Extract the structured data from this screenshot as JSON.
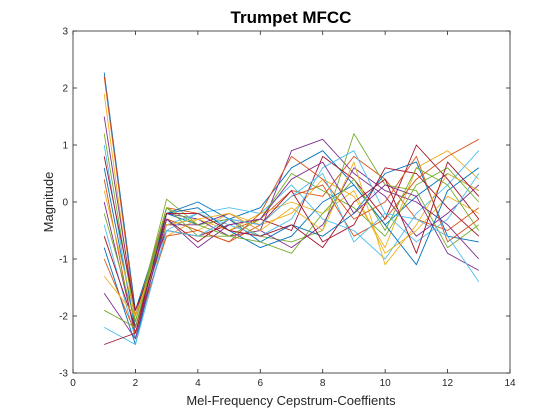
{
  "chart_data": {
    "type": "line",
    "title": "Trumpet MFCC",
    "xlabel": "Mel-Frequency Cepstrum-Coeffients",
    "ylabel": "Magnitude",
    "xlim": [
      0,
      14
    ],
    "ylim": [
      -3,
      3
    ],
    "xticks": [
      0,
      2,
      4,
      6,
      8,
      10,
      12,
      14
    ],
    "yticks": [
      -3,
      -2,
      -1,
      0,
      1,
      2,
      3
    ],
    "grid": false,
    "legend": "none",
    "colors": [
      "#0072BD",
      "#D95319",
      "#EDB120",
      "#7E2F8E",
      "#77AC30",
      "#4DBEEE",
      "#A2142F"
    ],
    "x": [
      1,
      2,
      3,
      4,
      5,
      6,
      7,
      8,
      9,
      10,
      11,
      12,
      13
    ],
    "series": [
      {
        "values": [
          2.27,
          -1.9,
          -0.2,
          -0.4,
          -0.3,
          -0.1,
          0.6,
          0.9,
          0.3,
          -0.4,
          0.1,
          0.5,
          0.2
        ]
      },
      {
        "values": [
          2.2,
          -2.0,
          -0.1,
          -0.2,
          -0.5,
          -0.3,
          0.2,
          0.1,
          0.8,
          0.4,
          -0.3,
          -0.5,
          -0.1
        ]
      },
      {
        "values": [
          1.9,
          -2.2,
          -0.3,
          -0.5,
          -0.2,
          -0.4,
          -0.2,
          0.4,
          0.1,
          -0.8,
          0.6,
          0.9,
          0.4
        ]
      },
      {
        "values": [
          1.5,
          -2.0,
          -0.2,
          -0.3,
          -0.6,
          -0.5,
          0.9,
          1.1,
          0.5,
          0.1,
          -0.6,
          -0.2,
          0.3
        ]
      },
      {
        "values": [
          1.2,
          -2.1,
          0.05,
          -0.4,
          -0.3,
          -0.6,
          -0.7,
          -0.5,
          1.2,
          0.3,
          0.2,
          -0.8,
          -0.4
        ]
      },
      {
        "values": [
          1.0,
          -2.3,
          -0.4,
          -0.2,
          -0.1,
          -0.2,
          0.3,
          -0.3,
          -0.5,
          -1.0,
          -0.2,
          0.3,
          0.9
        ]
      },
      {
        "values": [
          0.8,
          -1.9,
          -0.5,
          -0.6,
          -0.4,
          -0.3,
          -0.5,
          0.8,
          0.4,
          -0.3,
          1.0,
          0.4,
          -0.3
        ]
      },
      {
        "values": [
          0.6,
          -2.2,
          -0.2,
          0.0,
          -0.3,
          -0.7,
          -0.4,
          -0.6,
          -0.2,
          0.5,
          0.7,
          -0.6,
          -0.7
        ]
      },
      {
        "values": [
          0.4,
          -2.4,
          -0.3,
          -0.5,
          -0.7,
          -0.4,
          0.1,
          0.3,
          -0.6,
          -0.3,
          0.4,
          0.8,
          1.1
        ]
      },
      {
        "values": [
          0.2,
          -2.0,
          -0.6,
          -0.3,
          -0.5,
          -0.2,
          0.0,
          -0.2,
          0.2,
          -0.9,
          -0.5,
          0.1,
          -0.2
        ]
      },
      {
        "values": [
          0.0,
          -2.3,
          -0.4,
          -0.4,
          -0.2,
          -0.5,
          -0.8,
          -0.4,
          0.6,
          0.2,
          0.0,
          -0.4,
          -1.0
        ]
      },
      {
        "values": [
          -0.2,
          -2.1,
          -0.1,
          -0.6,
          -0.6,
          -0.3,
          0.5,
          0.2,
          -0.1,
          -0.6,
          0.3,
          0.6,
          0.0
        ]
      },
      {
        "values": [
          -0.4,
          -2.4,
          -0.5,
          -0.2,
          -0.4,
          -0.6,
          -0.3,
          0.6,
          0.9,
          -0.2,
          -0.7,
          -0.3,
          0.5
        ]
      },
      {
        "values": [
          -0.6,
          -2.2,
          -0.3,
          -0.7,
          -0.3,
          -0.4,
          0.2,
          -0.7,
          -0.4,
          0.6,
          0.5,
          -0.1,
          -0.6
        ]
      },
      {
        "values": [
          -0.8,
          -2.5,
          -0.2,
          -0.1,
          -0.5,
          -0.8,
          -0.6,
          0.0,
          0.3,
          -0.4,
          -1.1,
          0.2,
          0.6
        ]
      },
      {
        "values": [
          -1.0,
          -2.3,
          -0.6,
          -0.5,
          -0.7,
          -0.2,
          0.8,
          0.4,
          -0.3,
          0.0,
          0.8,
          -0.7,
          -0.3
        ]
      },
      {
        "values": [
          -1.3,
          -2.0,
          -0.4,
          -0.3,
          -0.2,
          -0.5,
          -0.1,
          -0.5,
          0.7,
          -1.1,
          -0.4,
          0.5,
          0.2
        ]
      },
      {
        "values": [
          -1.6,
          -2.4,
          -0.3,
          -0.8,
          -0.4,
          -0.3,
          0.4,
          0.7,
          -0.2,
          0.3,
          0.1,
          -0.9,
          -1.2
        ]
      },
      {
        "values": [
          -1.9,
          -2.2,
          -0.1,
          -0.4,
          -0.6,
          -0.7,
          -0.9,
          -0.2,
          0.4,
          -0.5,
          0.6,
          0.3,
          -0.5
        ]
      },
      {
        "values": [
          -2.2,
          -2.5,
          -0.5,
          -0.6,
          -0.3,
          -0.4,
          0.1,
          0.5,
          -0.7,
          -0.2,
          -0.3,
          -0.6,
          -1.4
        ]
      },
      {
        "values": [
          -2.5,
          -2.3,
          -0.2,
          -0.2,
          -0.5,
          -0.6,
          -0.4,
          -0.8,
          0.0,
          0.4,
          -0.9,
          0.7,
          0.1
        ]
      }
    ]
  }
}
